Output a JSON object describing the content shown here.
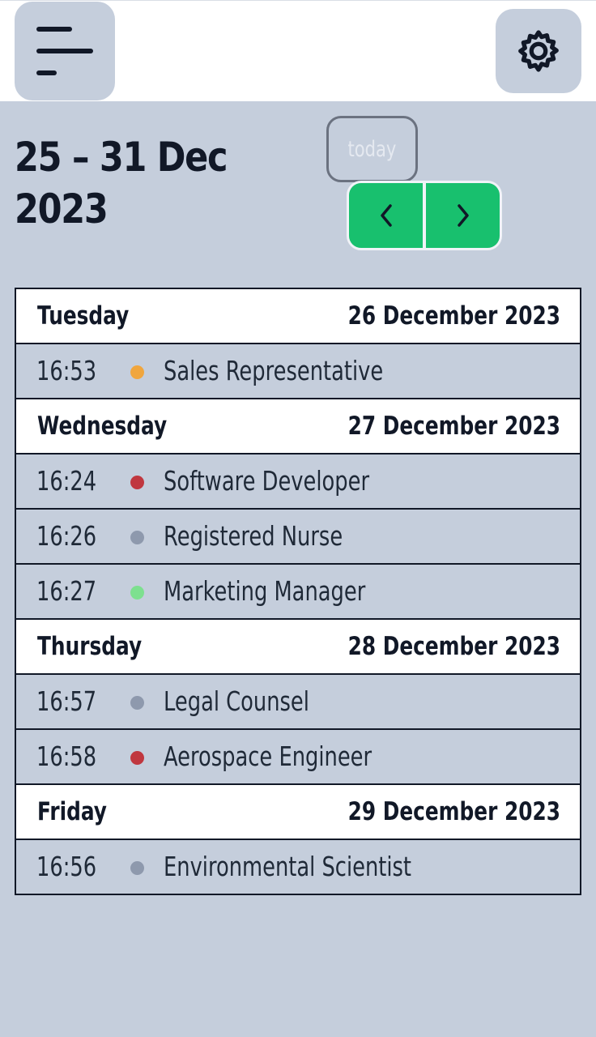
{
  "header": {
    "menu_icon": "menu-icon",
    "settings_icon": "gear-icon"
  },
  "toolbar": {
    "title_line1": "25 – 31 Dec",
    "title_line2": "2023",
    "today_label": "today",
    "prev_icon": "chevron-left-icon",
    "next_icon": "chevron-right-icon",
    "nav_color": "#18c06e"
  },
  "days": [
    {
      "name": "Tuesday",
      "date": "26 December 2023",
      "events": [
        {
          "time": "16:53",
          "title": "Sales Representative",
          "color": "#f0a63e"
        }
      ]
    },
    {
      "name": "Wednesday",
      "date": "27 December 2023",
      "events": [
        {
          "time": "16:24",
          "title": "Software Developer",
          "color": "#c0373f"
        },
        {
          "time": "16:26",
          "title": "Registered Nurse",
          "color": "#8e99ad"
        },
        {
          "time": "16:27",
          "title": "Marketing Manager",
          "color": "#7de08f"
        }
      ]
    },
    {
      "name": "Thursday",
      "date": "28 December 2023",
      "events": [
        {
          "time": "16:57",
          "title": "Legal Counsel",
          "color": "#8e99ad"
        },
        {
          "time": "16:58",
          "title": "Aerospace Engineer",
          "color": "#c0373f"
        }
      ]
    },
    {
      "name": "Friday",
      "date": "29 December 2023",
      "events": [
        {
          "time": "16:56",
          "title": "Environmental Scientist",
          "color": "#8e99ad"
        }
      ]
    }
  ]
}
